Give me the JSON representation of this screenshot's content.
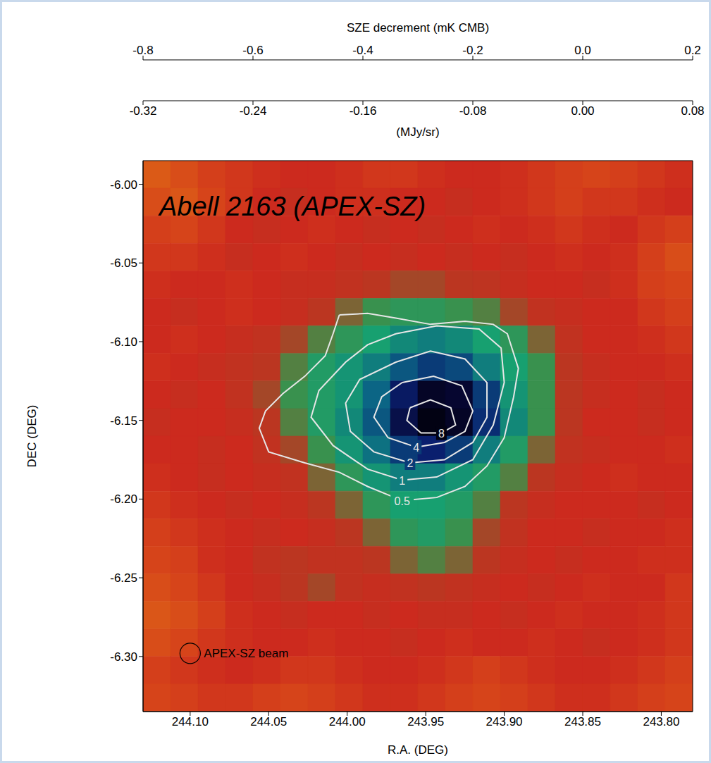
{
  "chart_data": {
    "type": "heatmap",
    "title": "Abell 2163 (APEX-SZ)",
    "x_label": "R.A. (DEG)",
    "y_label": "DEC (DEG)",
    "xlim": [
      244.13,
      243.78
    ],
    "ylim": [
      -6.335,
      -5.985
    ],
    "xticks": [
      {
        "value": 244.1,
        "label": "244.10"
      },
      244.05,
      {
        "value": 244,
        "label": "244.00"
      },
      243.95,
      {
        "value": 243.9,
        "label": "243.90"
      },
      243.85,
      {
        "value": 243.8,
        "label": "243.80"
      }
    ],
    "yticks": [
      {
        "value": -6.3,
        "label": "-6.30"
      },
      -6.25,
      {
        "value": -6.2,
        "label": "-6.20"
      },
      -6.15,
      {
        "value": -6.1,
        "label": "-6.10"
      },
      -6.05,
      {
        "value": -6,
        "label": "-6.00"
      }
    ],
    "cells": {
      "x_edges": [
        244.13,
        244.1125,
        244.095,
        244.0775,
        244.06,
        244.0425,
        244.025,
        244.0075,
        243.99,
        243.9725,
        243.955,
        243.9375,
        243.92,
        243.9025,
        243.885,
        243.8675,
        243.85,
        243.8325,
        243.815,
        243.7975,
        243.78
      ],
      "y_edges": [
        -5.985,
        -6.0025,
        -6.02,
        -6.0375,
        -6.055,
        -6.0725,
        -6.09,
        -6.1075,
        -6.125,
        -6.1425,
        -6.16,
        -6.1775,
        -6.195,
        -6.2125,
        -6.23,
        -6.2475,
        -6.265,
        -6.2825,
        -6.3,
        -6.3175,
        -6.335
      ],
      "values": [
        [
          -0.05,
          -0.08,
          -0.12,
          -0.15,
          -0.18,
          -0.2,
          -0.2,
          -0.18,
          -0.15,
          -0.15,
          -0.18,
          -0.2,
          -0.2,
          -0.18,
          -0.15,
          -0.12,
          -0.1,
          -0.12,
          -0.15,
          -0.18
        ],
        [
          -0.08,
          -0.06,
          -0.1,
          -0.15,
          -0.2,
          -0.22,
          -0.2,
          -0.18,
          -0.18,
          -0.2,
          -0.2,
          -0.22,
          -0.2,
          -0.18,
          -0.15,
          -0.12,
          -0.15,
          -0.15,
          -0.18,
          -0.2
        ],
        [
          -0.12,
          -0.1,
          -0.15,
          -0.2,
          -0.22,
          -0.2,
          -0.18,
          -0.2,
          -0.22,
          -0.2,
          -0.22,
          -0.2,
          -0.18,
          -0.2,
          -0.18,
          -0.15,
          -0.18,
          -0.2,
          -0.15,
          -0.12
        ],
        [
          -0.15,
          -0.15,
          -0.18,
          -0.22,
          -0.2,
          -0.18,
          -0.2,
          -0.22,
          -0.2,
          -0.22,
          -0.2,
          -0.22,
          -0.2,
          -0.22,
          -0.2,
          -0.18,
          -0.2,
          -0.18,
          -0.12,
          -0.08
        ],
        [
          -0.18,
          -0.2,
          -0.2,
          -0.18,
          -0.2,
          -0.22,
          -0.22,
          -0.24,
          -0.26,
          -0.28,
          -0.28,
          -0.26,
          -0.25,
          -0.22,
          -0.2,
          -0.2,
          -0.22,
          -0.18,
          -0.12,
          -0.1
        ],
        [
          -0.2,
          -0.22,
          -0.2,
          -0.18,
          -0.2,
          -0.22,
          -0.26,
          -0.3,
          -0.34,
          -0.36,
          -0.36,
          -0.34,
          -0.32,
          -0.28,
          -0.24,
          -0.22,
          -0.2,
          -0.2,
          -0.15,
          -0.12
        ],
        [
          -0.2,
          -0.18,
          -0.2,
          -0.22,
          -0.24,
          -0.28,
          -0.32,
          -0.36,
          -0.4,
          -0.44,
          -0.46,
          -0.44,
          -0.4,
          -0.36,
          -0.3,
          -0.24,
          -0.2,
          -0.2,
          -0.18,
          -0.15
        ],
        [
          -0.18,
          -0.2,
          -0.22,
          -0.24,
          -0.26,
          -0.32,
          -0.38,
          -0.42,
          -0.46,
          -0.52,
          -0.56,
          -0.54,
          -0.46,
          -0.4,
          -0.34,
          -0.26,
          -0.22,
          -0.2,
          -0.2,
          -0.18
        ],
        [
          -0.2,
          -0.22,
          -0.2,
          -0.24,
          -0.28,
          -0.34,
          -0.38,
          -0.42,
          -0.5,
          -0.62,
          -0.72,
          -0.7,
          -0.56,
          -0.42,
          -0.34,
          -0.26,
          -0.22,
          -0.2,
          -0.22,
          -0.2
        ],
        [
          -0.22,
          -0.2,
          -0.2,
          -0.22,
          -0.26,
          -0.32,
          -0.38,
          -0.44,
          -0.52,
          -0.66,
          -0.76,
          -0.72,
          -0.58,
          -0.44,
          -0.34,
          -0.26,
          -0.2,
          -0.2,
          -0.22,
          -0.2
        ],
        [
          -0.2,
          -0.2,
          -0.22,
          -0.2,
          -0.24,
          -0.28,
          -0.34,
          -0.42,
          -0.48,
          -0.56,
          -0.6,
          -0.56,
          -0.46,
          -0.38,
          -0.3,
          -0.24,
          -0.22,
          -0.2,
          -0.2,
          -0.18
        ],
        [
          -0.18,
          -0.2,
          -0.22,
          -0.2,
          -0.22,
          -0.24,
          -0.3,
          -0.36,
          -0.42,
          -0.46,
          -0.46,
          -0.42,
          -0.38,
          -0.32,
          -0.26,
          -0.22,
          -0.2,
          -0.18,
          -0.2,
          -0.2
        ],
        [
          -0.15,
          -0.18,
          -0.2,
          -0.22,
          -0.2,
          -0.22,
          -0.26,
          -0.3,
          -0.36,
          -0.4,
          -0.4,
          -0.38,
          -0.32,
          -0.26,
          -0.22,
          -0.2,
          -0.2,
          -0.2,
          -0.22,
          -0.2
        ],
        [
          -0.12,
          -0.15,
          -0.18,
          -0.2,
          -0.22,
          -0.2,
          -0.22,
          -0.26,
          -0.3,
          -0.36,
          -0.38,
          -0.34,
          -0.28,
          -0.24,
          -0.2,
          -0.2,
          -0.22,
          -0.2,
          -0.2,
          -0.18
        ],
        [
          -0.1,
          -0.12,
          -0.18,
          -0.2,
          -0.24,
          -0.26,
          -0.24,
          -0.24,
          -0.26,
          -0.3,
          -0.32,
          -0.3,
          -0.26,
          -0.22,
          -0.2,
          -0.22,
          -0.2,
          -0.2,
          -0.18,
          -0.18
        ],
        [
          -0.08,
          -0.1,
          -0.15,
          -0.2,
          -0.22,
          -0.26,
          -0.28,
          -0.24,
          -0.22,
          -0.24,
          -0.26,
          -0.24,
          -0.22,
          -0.2,
          -0.22,
          -0.2,
          -0.18,
          -0.2,
          -0.2,
          -0.15
        ],
        [
          -0.06,
          -0.08,
          -0.12,
          -0.18,
          -0.2,
          -0.22,
          -0.2,
          -0.2,
          -0.22,
          -0.2,
          -0.22,
          -0.22,
          -0.2,
          -0.22,
          -0.2,
          -0.18,
          -0.2,
          -0.2,
          -0.18,
          -0.15
        ],
        [
          -0.08,
          -0.1,
          -0.15,
          -0.18,
          -0.2,
          -0.2,
          -0.18,
          -0.2,
          -0.2,
          -0.22,
          -0.2,
          -0.18,
          -0.2,
          -0.2,
          -0.18,
          -0.2,
          -0.22,
          -0.2,
          -0.18,
          -0.15
        ],
        [
          -0.12,
          -0.15,
          -0.18,
          -0.2,
          -0.18,
          -0.15,
          -0.15,
          -0.18,
          -0.2,
          -0.2,
          -0.18,
          -0.15,
          -0.12,
          -0.15,
          -0.18,
          -0.2,
          -0.2,
          -0.18,
          -0.15,
          -0.12
        ],
        [
          -0.1,
          -0.12,
          -0.15,
          -0.15,
          -0.12,
          -0.1,
          -0.12,
          -0.15,
          -0.18,
          -0.18,
          -0.15,
          -0.12,
          -0.1,
          -0.12,
          -0.15,
          -0.18,
          -0.18,
          -0.15,
          -0.12,
          -0.1
        ]
      ]
    },
    "colorbar": {
      "label": "SZE decrement (mK CMB)",
      "range": [
        -0.8,
        0.2
      ],
      "ticks": [
        -0.8,
        -0.6,
        -0.4,
        -0.2,
        {
          "value": 0,
          "label": "0.0"
        },
        0.2
      ],
      "second_label": "(MJy/sr)",
      "second_range": [
        -0.32,
        0.08
      ],
      "second_ticks": [
        -0.32,
        -0.24,
        -0.16,
        -0.08,
        {
          "value": 0,
          "label": "0.00"
        },
        0.08
      ]
    },
    "contours": [
      {
        "level": 0.5,
        "x": [
          244.005,
          243.987,
          243.969,
          243.947,
          243.925,
          243.907,
          243.898,
          243.891,
          243.894,
          243.9,
          243.911,
          243.925,
          243.943,
          243.965,
          243.987,
          244.005,
          244.027,
          244.05,
          244.056,
          244.052,
          244.041,
          244.027,
          244.014,
          244.009
        ],
        "y": [
          -6.083,
          -6.082,
          -6.085,
          -6.089,
          -6.087,
          -6.089,
          -6.095,
          -6.117,
          -6.135,
          -6.161,
          -6.179,
          -6.192,
          -6.199,
          -6.201,
          -6.192,
          -6.183,
          -6.177,
          -6.17,
          -6.155,
          -6.144,
          -6.133,
          -6.122,
          -6.109,
          -6.095
        ]
      },
      {
        "level": 1,
        "x": [
          243.969,
          243.943,
          243.916,
          243.902,
          243.9,
          243.907,
          243.92,
          243.943,
          243.965,
          243.987,
          244.009,
          244.023,
          244.018,
          244.001,
          243.987
        ],
        "y": [
          -6.095,
          -6.09,
          -6.092,
          -6.104,
          -6.126,
          -6.153,
          -6.175,
          -6.186,
          -6.188,
          -6.181,
          -6.166,
          -6.148,
          -6.131,
          -6.113,
          -6.102
        ]
      },
      {
        "level": 2,
        "x": [
          243.969,
          243.947,
          243.925,
          243.911,
          243.911,
          243.92,
          243.938,
          243.96,
          243.983,
          243.998,
          244.001,
          243.992
        ],
        "y": [
          -6.113,
          -6.106,
          -6.111,
          -6.126,
          -6.148,
          -6.164,
          -6.175,
          -6.177,
          -6.17,
          -6.157,
          -6.139,
          -6.124
        ]
      },
      {
        "level": 4,
        "x": [
          243.965,
          243.945,
          243.927,
          243.92,
          243.925,
          243.938,
          243.956,
          243.974,
          243.983,
          243.978
        ],
        "y": [
          -6.126,
          -6.122,
          -6.128,
          -6.144,
          -6.157,
          -6.164,
          -6.167,
          -6.161,
          -6.148,
          -6.135
        ]
      },
      {
        "level": 8,
        "x": [
          243.96,
          243.947,
          243.934,
          243.931,
          243.94,
          243.953,
          243.962
        ],
        "y": [
          -6.142,
          -6.137,
          -6.142,
          -6.153,
          -6.158,
          -6.158,
          -6.15
        ]
      }
    ],
    "beam": {
      "label": "APEX-SZ beam",
      "diameter": 0.013,
      "x": 244.1,
      "y": -6.298
    }
  }
}
